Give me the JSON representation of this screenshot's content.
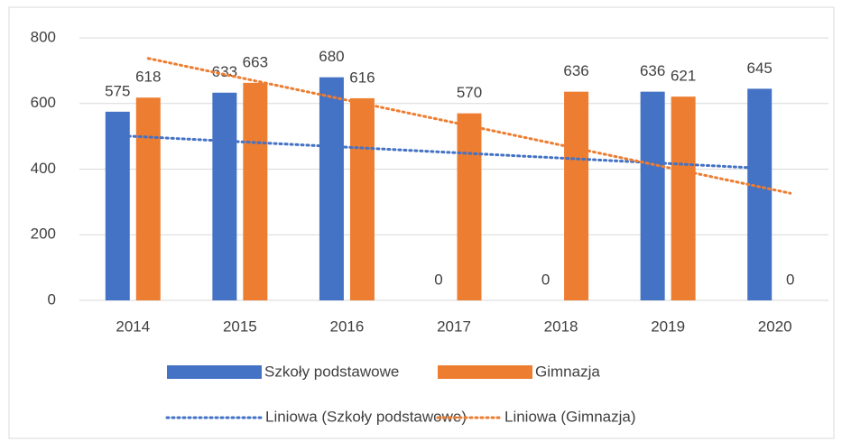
{
  "chart_data": {
    "type": "bar",
    "categories": [
      "2014",
      "2015",
      "2016",
      "2017",
      "2018",
      "2019",
      "2020"
    ],
    "series": [
      {
        "name": "Szkoły podstawowe",
        "color": "#4472c4",
        "values": [
          575,
          633,
          680,
          0,
          0,
          636,
          645
        ]
      },
      {
        "name": "Gimnazja",
        "color": "#ed7d31",
        "values": [
          618,
          663,
          616,
          570,
          636,
          621,
          0
        ]
      }
    ],
    "trendlines": [
      {
        "name": "Liniowa (Szkoły podstawowe)",
        "series": 0,
        "kind": "linear",
        "color": "#4472c4"
      },
      {
        "name": "Liniowa (Gimnazja)",
        "series": 1,
        "kind": "linear",
        "color": "#ed7d31"
      }
    ],
    "ylim": [
      0,
      800
    ],
    "yticks": [
      0,
      200,
      400,
      600,
      800
    ],
    "grid": true,
    "data_labels": true,
    "legend": "bottom"
  }
}
